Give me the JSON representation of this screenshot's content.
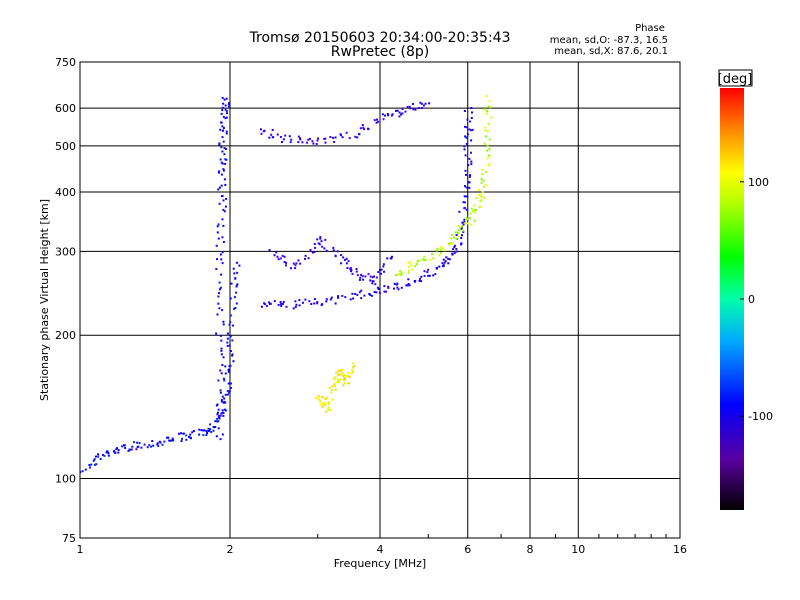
{
  "title_line1": "Tromsø 20150603 20:34:00-20:35:43",
  "title_line2": "RwPretec (8p)",
  "phase_stats": {
    "heading": "Phase",
    "o_line": "mean, sd,O: -87.3, 16.5",
    "x_line": "mean, sd,X: 87.6, 20.1"
  },
  "colorbar": {
    "unit_label": "[deg]",
    "ticks": [
      "100",
      "0",
      "-100"
    ],
    "tick_values": [
      100,
      0,
      -100
    ],
    "range": [
      -180,
      180
    ]
  },
  "chart_data": {
    "type": "scatter",
    "xlabel": "Frequency [MHz]",
    "ylabel": "Stationary phase Virtual Height [km]",
    "x_scale": "log",
    "y_scale": "log",
    "xlim": [
      1,
      16
    ],
    "ylim": [
      75,
      750
    ],
    "x_ticks": [
      1,
      2,
      4,
      6,
      8,
      10,
      16
    ],
    "x_tick_labels": [
      "1",
      "2",
      "4",
      "6",
      "8",
      "10",
      "16"
    ],
    "y_ticks": [
      75,
      100,
      200,
      300,
      400,
      500,
      600,
      750
    ],
    "y_tick_labels": [
      "75",
      "100",
      "200",
      "300",
      "400",
      "500",
      "600",
      "750"
    ],
    "grid": true,
    "color_scale": "phase [deg], rainbow (black = -180, red = +180)",
    "traces": [
      {
        "name": "O-mode low trace",
        "phase": -95,
        "points": [
          [
            1.0,
            104
          ],
          [
            1.1,
            112
          ],
          [
            1.2,
            116
          ],
          [
            1.3,
            118
          ],
          [
            1.45,
            120
          ],
          [
            1.6,
            123
          ],
          [
            1.75,
            125
          ],
          [
            1.85,
            130
          ],
          [
            1.92,
            140
          ],
          [
            1.97,
            160
          ],
          [
            2.0,
            190
          ],
          [
            2.02,
            240
          ],
          [
            2.05,
            290
          ]
        ]
      },
      {
        "name": "O-mode spread column",
        "phase": -100,
        "points": [
          [
            1.9,
            120
          ],
          [
            1.9,
            160
          ],
          [
            1.9,
            220
          ],
          [
            1.9,
            300
          ],
          [
            1.92,
            380
          ],
          [
            1.92,
            450
          ],
          [
            1.93,
            520
          ],
          [
            1.95,
            580
          ],
          [
            1.95,
            640
          ]
        ]
      },
      {
        "name": "O-mode F trace",
        "phase": -110,
        "points": [
          [
            2.3,
            235
          ],
          [
            2.6,
            232
          ],
          [
            3.0,
            236
          ],
          [
            3.5,
            242
          ],
          [
            4.0,
            250
          ],
          [
            4.5,
            258
          ],
          [
            5.0,
            270
          ],
          [
            5.4,
            285
          ],
          [
            5.7,
            310
          ],
          [
            5.85,
            360
          ],
          [
            5.95,
            430
          ],
          [
            6.0,
            520
          ],
          [
            6.0,
            600
          ]
        ]
      },
      {
        "name": "O-mode upper band",
        "phase": -120,
        "points": [
          [
            2.3,
            540
          ],
          [
            2.6,
            520
          ],
          [
            3.0,
            510
          ],
          [
            3.5,
            530
          ],
          [
            4.0,
            570
          ],
          [
            4.5,
            600
          ],
          [
            5.0,
            620
          ]
        ]
      },
      {
        "name": "O-mode diffuse F",
        "phase": -125,
        "points": [
          [
            2.4,
            300
          ],
          [
            2.7,
            280
          ],
          [
            3.0,
            320
          ],
          [
            3.3,
            290
          ],
          [
            3.6,
            270
          ],
          [
            3.9,
            260
          ],
          [
            4.2,
            300
          ]
        ]
      },
      {
        "name": "X-mode F trace",
        "phase": 95,
        "points": [
          [
            4.3,
            270
          ],
          [
            4.7,
            285
          ],
          [
            5.2,
            300
          ],
          [
            5.6,
            320
          ],
          [
            6.0,
            350
          ],
          [
            6.3,
            380
          ],
          [
            6.45,
            430
          ],
          [
            6.55,
            520
          ],
          [
            6.6,
            640
          ]
        ]
      },
      {
        "name": "X-mode patch",
        "phase": 110,
        "points": [
          [
            3.0,
            150
          ],
          [
            3.1,
            140
          ],
          [
            3.2,
            155
          ],
          [
            3.3,
            170
          ],
          [
            3.4,
            160
          ],
          [
            3.5,
            175
          ]
        ]
      }
    ]
  }
}
